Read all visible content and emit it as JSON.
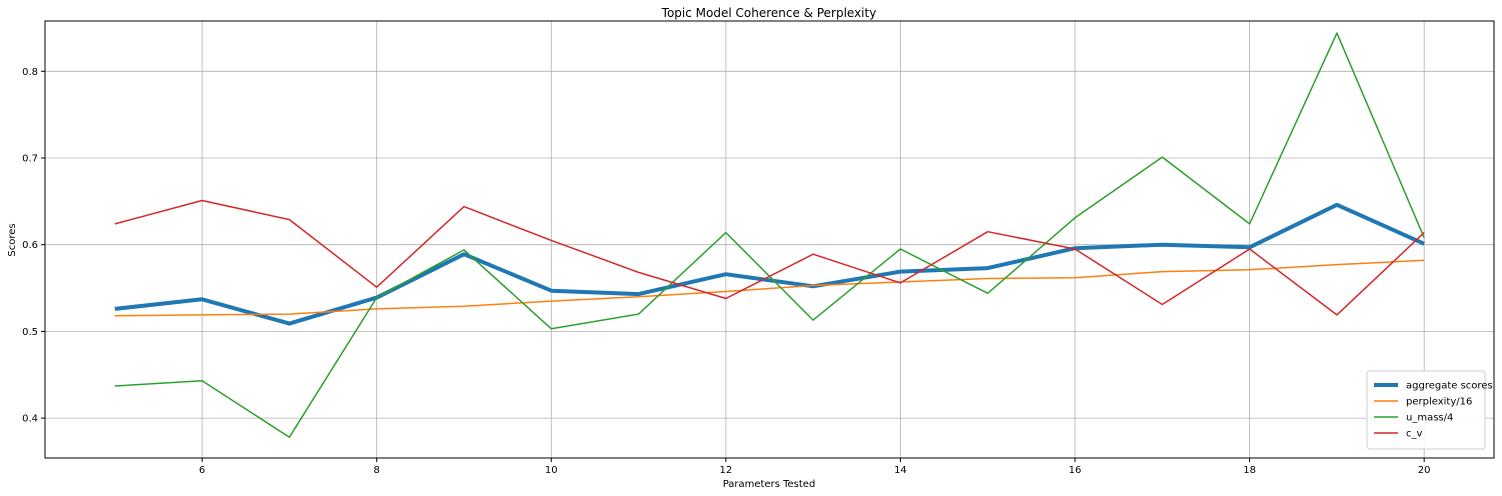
{
  "chart_data": {
    "type": "line",
    "title": "Topic Model Coherence & Perplexity",
    "xlabel": "Parameters Tested",
    "ylabel": "Scores",
    "xlim": [
      4.2,
      20.8
    ],
    "ylim": [
      0.354,
      0.858
    ],
    "xticks": [
      6,
      8,
      10,
      12,
      14,
      16,
      18,
      20
    ],
    "yticks": [
      0.4,
      0.5,
      0.6,
      0.7,
      0.8
    ],
    "grid": true,
    "legend_position": "lower-right",
    "x": [
      5,
      6,
      7,
      8,
      9,
      10,
      11,
      12,
      13,
      14,
      15,
      16,
      17,
      18,
      19,
      20
    ],
    "series": [
      {
        "name": "aggregate scores",
        "color": "#1f77b4",
        "width": "thick",
        "values": [
          0.526,
          0.537,
          0.509,
          0.539,
          0.589,
          0.547,
          0.543,
          0.566,
          0.552,
          0.569,
          0.573,
          0.596,
          0.6,
          0.597,
          0.646,
          0.601
        ]
      },
      {
        "name": "perplexity/16",
        "color": "#ff7f0e",
        "width": "normal",
        "values": [
          0.518,
          0.519,
          0.52,
          0.526,
          0.529,
          0.535,
          0.54,
          0.546,
          0.553,
          0.557,
          0.561,
          0.562,
          0.569,
          0.571,
          0.577,
          0.582
        ]
      },
      {
        "name": "u_mass/4",
        "color": "#2ca02c",
        "width": "normal",
        "values": [
          0.437,
          0.443,
          0.378,
          0.539,
          0.594,
          0.503,
          0.52,
          0.614,
          0.513,
          0.595,
          0.544,
          0.631,
          0.701,
          0.624,
          0.844,
          0.608
        ]
      },
      {
        "name": "c_v",
        "color": "#d62728",
        "width": "normal",
        "values": [
          0.624,
          0.651,
          0.629,
          0.551,
          0.644,
          0.605,
          0.568,
          0.538,
          0.589,
          0.556,
          0.615,
          0.595,
          0.531,
          0.595,
          0.519,
          0.614
        ]
      }
    ]
  }
}
